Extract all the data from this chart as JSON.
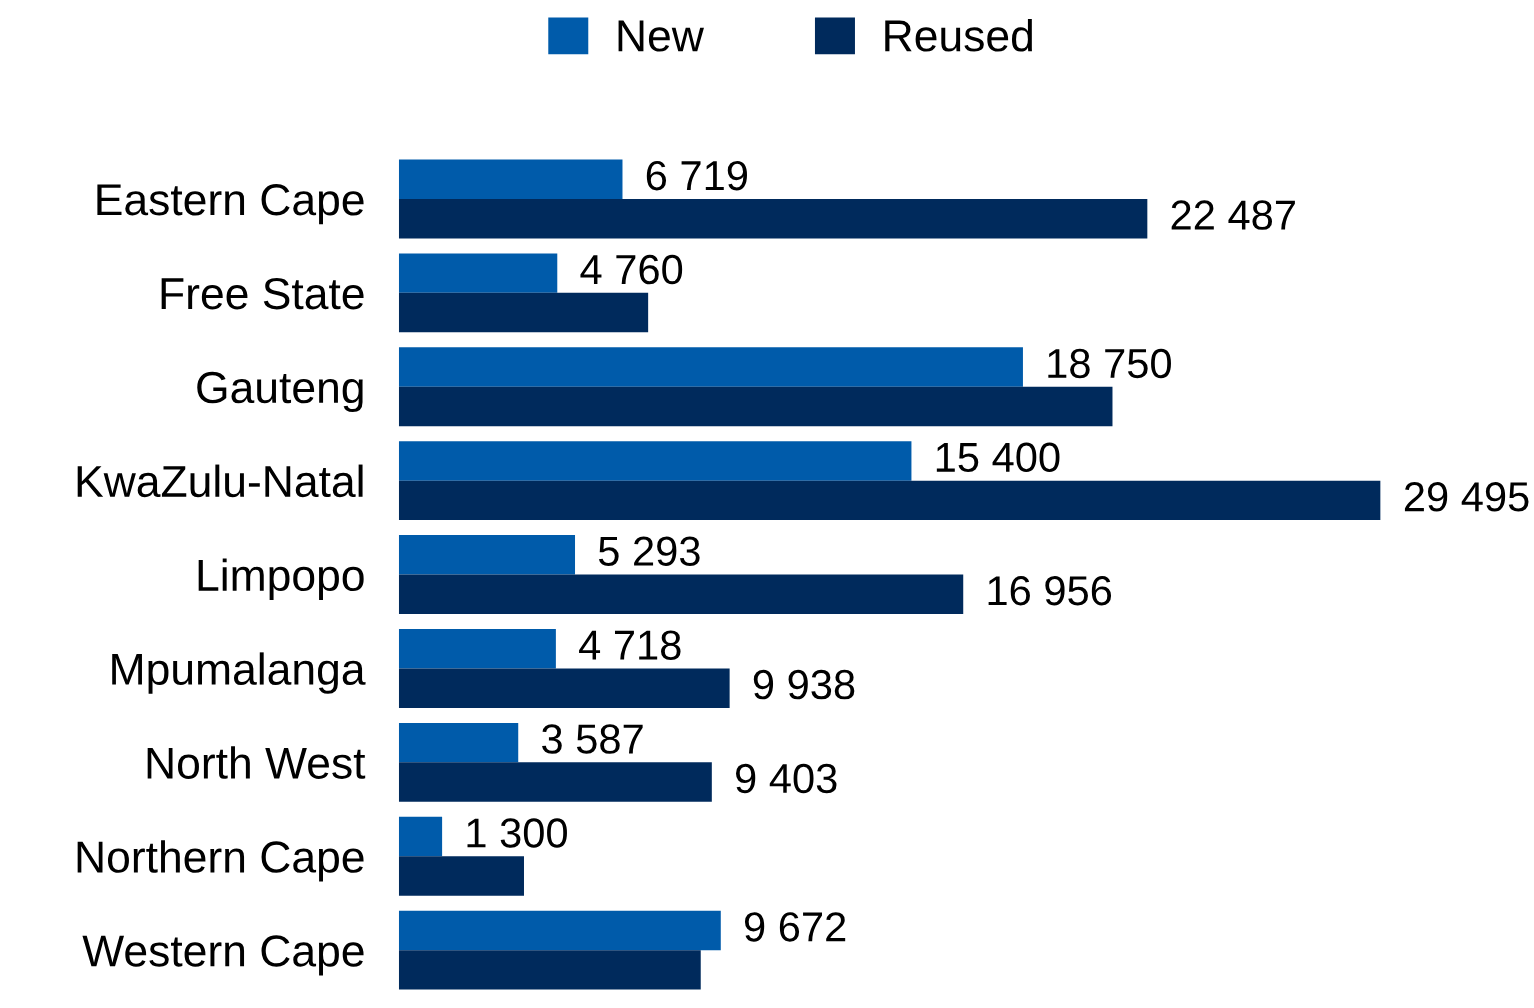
{
  "chart_data": {
    "type": "bar",
    "orientation": "horizontal",
    "categories": [
      "Eastern Cape",
      "Free State",
      "Gauteng",
      "KwaZulu-Natal",
      "Limpopo",
      "Mpumalanga",
      "North West",
      "Northern Cape",
      "Western Cape"
    ],
    "series": [
      {
        "name": "New",
        "color": "#005baa",
        "values": [
          6719,
          4760,
          18750,
          15400,
          5293,
          4718,
          3587,
          1300,
          9672
        ],
        "value_labels": [
          "6 719",
          "4 760",
          "18 750",
          "15 400",
          "5 293",
          "4 718",
          "3 587",
          "1 300",
          "9 672"
        ]
      },
      {
        "name": "Reused",
        "color": "#002a5c",
        "values": [
          22487,
          7490,
          21440,
          29495,
          16956,
          9938,
          9403,
          3760,
          9070
        ],
        "value_labels": [
          "22 487",
          null,
          null,
          "29 495",
          "16 956",
          "9 938",
          "9 403",
          null,
          null
        ]
      }
    ],
    "legend": "top",
    "grid": false
  }
}
